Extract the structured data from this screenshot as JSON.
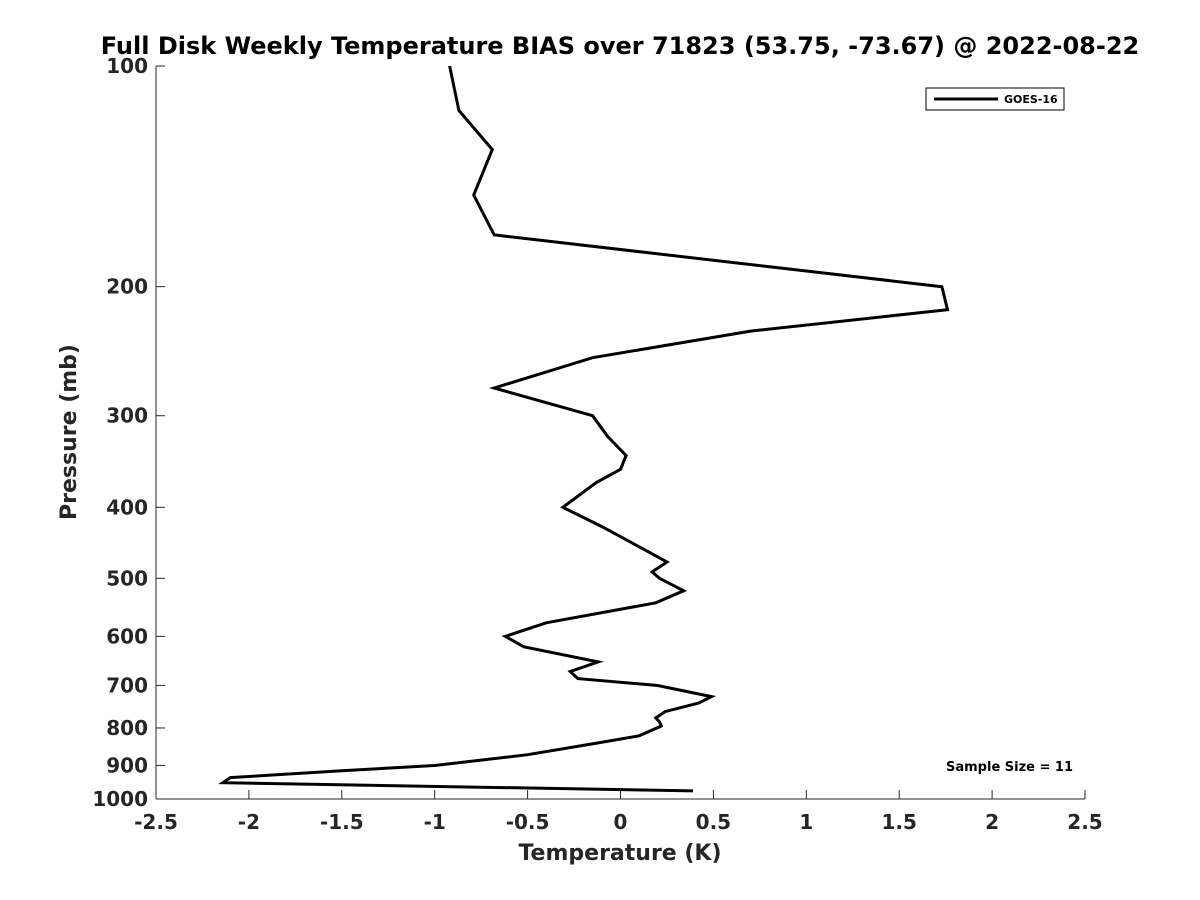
{
  "chart_data": {
    "type": "line",
    "title": "Full Disk Weekly Temperature BIAS over 71823 (53.75, -73.67) @ 2022-08-22",
    "xlabel": "Temperature (K)",
    "ylabel": "Pressure (mb)",
    "xlim": [
      -2.5,
      2.5
    ],
    "ylim": [
      100,
      1000
    ],
    "y_scale": "log",
    "y_direction": "reversed",
    "grid": false,
    "legend_position": "top-right",
    "x_ticks": [
      "-2.5",
      "-2",
      "-1.5",
      "-1",
      "-0.5",
      "0",
      "0.5",
      "1",
      "1.5",
      "2",
      "2.5"
    ],
    "y_ticks": [
      "100",
      "200",
      "300",
      "400",
      "500",
      "600",
      "700",
      "800",
      "900",
      "1000"
    ],
    "annotation": "Sample Size = 11",
    "series": [
      {
        "name": "GOES-16",
        "color": "#000000",
        "points": [
          {
            "x": -0.92,
            "y": 100
          },
          {
            "x": -0.87,
            "y": 115
          },
          {
            "x": -0.69,
            "y": 130
          },
          {
            "x": -0.79,
            "y": 150
          },
          {
            "x": -0.68,
            "y": 170
          },
          {
            "x": 1.73,
            "y": 200
          },
          {
            "x": 1.76,
            "y": 215
          },
          {
            "x": 0.7,
            "y": 230
          },
          {
            "x": -0.15,
            "y": 250
          },
          {
            "x": -0.68,
            "y": 275
          },
          {
            "x": -0.15,
            "y": 300
          },
          {
            "x": -0.07,
            "y": 320
          },
          {
            "x": 0.03,
            "y": 340
          },
          {
            "x": 0.0,
            "y": 355
          },
          {
            "x": -0.13,
            "y": 370
          },
          {
            "x": -0.31,
            "y": 400
          },
          {
            "x": -0.1,
            "y": 425
          },
          {
            "x": 0.15,
            "y": 460
          },
          {
            "x": 0.25,
            "y": 475
          },
          {
            "x": 0.17,
            "y": 490
          },
          {
            "x": 0.21,
            "y": 500
          },
          {
            "x": 0.34,
            "y": 520
          },
          {
            "x": 0.19,
            "y": 540
          },
          {
            "x": -0.4,
            "y": 575
          },
          {
            "x": -0.62,
            "y": 600
          },
          {
            "x": -0.52,
            "y": 620
          },
          {
            "x": -0.12,
            "y": 650
          },
          {
            "x": -0.27,
            "y": 670
          },
          {
            "x": -0.23,
            "y": 685
          },
          {
            "x": 0.2,
            "y": 700
          },
          {
            "x": 0.49,
            "y": 725
          },
          {
            "x": 0.42,
            "y": 740
          },
          {
            "x": 0.24,
            "y": 760
          },
          {
            "x": 0.19,
            "y": 775
          },
          {
            "x": 0.21,
            "y": 785
          },
          {
            "x": 0.22,
            "y": 795
          },
          {
            "x": 0.1,
            "y": 820
          },
          {
            "x": -0.14,
            "y": 840
          },
          {
            "x": -0.5,
            "y": 870
          },
          {
            "x": -1.0,
            "y": 900
          },
          {
            "x": -1.5,
            "y": 915
          },
          {
            "x": -2.1,
            "y": 935
          },
          {
            "x": -2.14,
            "y": 950
          },
          {
            "x": 0.39,
            "y": 975
          }
        ]
      }
    ]
  }
}
